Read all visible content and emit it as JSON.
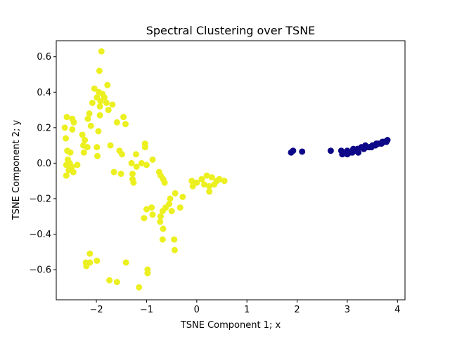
{
  "chart_data": {
    "type": "scatter",
    "title": "Spectral Clustering over TSNE",
    "xlabel": "TSNE Component 1; x",
    "ylabel": "TSNE Component 2; y",
    "xlim": [
      -2.8,
      4.15
    ],
    "ylim": [
      -0.77,
      0.69
    ],
    "xticks": [
      -2,
      -1,
      0,
      1,
      2,
      3,
      4
    ],
    "yticks": [
      -0.6,
      -0.4,
      -0.2,
      0.0,
      0.2,
      0.4,
      0.6
    ],
    "xtick_labels": [
      "−2",
      "−1",
      "0",
      "1",
      "2",
      "3",
      "4"
    ],
    "ytick_labels": [
      "−0.6",
      "−0.4",
      "−0.2",
      "0.0",
      "0.2",
      "0.4",
      "0.6"
    ],
    "grid": false,
    "series": [
      {
        "color": "#ecf020",
        "points": [
          [
            -1.9,
            0.63
          ],
          [
            -1.94,
            0.52
          ],
          [
            -1.78,
            0.44
          ],
          [
            -2.04,
            0.42
          ],
          [
            -1.95,
            0.4
          ],
          [
            -1.88,
            0.39
          ],
          [
            -1.99,
            0.37
          ],
          [
            -1.84,
            0.37
          ],
          [
            -2.08,
            0.34
          ],
          [
            -1.92,
            0.35
          ],
          [
            -1.8,
            0.34
          ],
          [
            -1.68,
            0.33
          ],
          [
            -1.93,
            0.32
          ],
          [
            -1.76,
            0.3
          ],
          [
            -2.14,
            0.28
          ],
          [
            -1.93,
            0.27
          ],
          [
            -1.46,
            0.26
          ],
          [
            -2.17,
            0.25
          ],
          [
            -2.48,
            0.25
          ],
          [
            -2.59,
            0.26
          ],
          [
            -2.45,
            0.23
          ],
          [
            -1.59,
            0.23
          ],
          [
            -2.11,
            0.21
          ],
          [
            -1.42,
            0.22
          ],
          [
            -2.63,
            0.2
          ],
          [
            -2.48,
            0.19
          ],
          [
            -1.96,
            0.18
          ],
          [
            -2.28,
            0.16
          ],
          [
            -2.61,
            0.14
          ],
          [
            -2.23,
            0.13
          ],
          [
            -2.26,
            0.1
          ],
          [
            -1.72,
            0.1
          ],
          [
            -2.18,
            0.09
          ],
          [
            -1.99,
            0.09
          ],
          [
            -1.03,
            0.11
          ],
          [
            -1.03,
            0.09
          ],
          [
            -2.58,
            0.07
          ],
          [
            -2.52,
            0.06
          ],
          [
            -1.54,
            0.07
          ],
          [
            -1.49,
            0.05
          ],
          [
            -2.25,
            0.06
          ],
          [
            -1.98,
            0.04
          ],
          [
            -1.21,
            0.05
          ],
          [
            -2.57,
            0.02
          ],
          [
            -2.53,
            0.0
          ],
          [
            -2.6,
            -0.01
          ],
          [
            -2.38,
            -0.01
          ],
          [
            -2.49,
            -0.02
          ],
          [
            -0.88,
            0.02
          ],
          [
            -1.3,
            0.0
          ],
          [
            -1.1,
            0.0
          ],
          [
            -1.0,
            -0.01
          ],
          [
            -1.2,
            -0.02
          ],
          [
            -2.55,
            -0.04
          ],
          [
            -2.46,
            -0.05
          ],
          [
            -2.6,
            -0.07
          ],
          [
            -1.65,
            -0.05
          ],
          [
            -1.51,
            -0.06
          ],
          [
            -1.28,
            -0.06
          ],
          [
            -0.75,
            -0.05
          ],
          [
            -0.72,
            -0.07
          ],
          [
            -1.28,
            -0.09
          ],
          [
            -1.26,
            -0.11
          ],
          [
            -0.67,
            -0.09
          ],
          [
            -0.64,
            -0.11
          ],
          [
            0.2,
            -0.07
          ],
          [
            0.3,
            -0.08
          ],
          [
            0.45,
            -0.09
          ],
          [
            0.55,
            -0.1
          ],
          [
            0.1,
            -0.09
          ],
          [
            -0.1,
            -0.1
          ],
          [
            0.15,
            -0.12
          ],
          [
            0.35,
            -0.12
          ],
          [
            0.0,
            -0.11
          ],
          [
            0.4,
            -0.1
          ],
          [
            0.25,
            -0.13
          ],
          [
            -0.08,
            -0.13
          ],
          [
            0.25,
            -0.16
          ],
          [
            -0.43,
            -0.17
          ],
          [
            -0.28,
            -0.19
          ],
          [
            -0.53,
            -0.2
          ],
          [
            -0.55,
            -0.23
          ],
          [
            -0.62,
            -0.25
          ],
          [
            -0.33,
            -0.25
          ],
          [
            -0.9,
            -0.25
          ],
          [
            -0.5,
            -0.27
          ],
          [
            -0.68,
            -0.27
          ],
          [
            -1.0,
            -0.26
          ],
          [
            -0.72,
            -0.3
          ],
          [
            -0.88,
            -0.29
          ],
          [
            -1.05,
            -0.31
          ],
          [
            -0.73,
            -0.33
          ],
          [
            -0.67,
            -0.37
          ],
          [
            -0.68,
            -0.43
          ],
          [
            -0.45,
            -0.43
          ],
          [
            -0.44,
            -0.49
          ],
          [
            -2.13,
            -0.51
          ],
          [
            -2.21,
            -0.56
          ],
          [
            -2.13,
            -0.56
          ],
          [
            -1.99,
            -0.55
          ],
          [
            -1.41,
            -0.56
          ],
          [
            -2.2,
            -0.58
          ],
          [
            -0.98,
            -0.6
          ],
          [
            -0.98,
            -0.62
          ],
          [
            -1.74,
            -0.66
          ],
          [
            -1.59,
            -0.67
          ],
          [
            -1.15,
            -0.7
          ]
        ]
      },
      {
        "color": "#0d0887",
        "points": [
          [
            1.88,
            0.06
          ],
          [
            1.92,
            0.07
          ],
          [
            2.1,
            0.065
          ],
          [
            2.67,
            0.07
          ],
          [
            2.88,
            0.07
          ],
          [
            2.9,
            0.05
          ],
          [
            2.95,
            0.06
          ],
          [
            3.0,
            0.05
          ],
          [
            3.05,
            0.06
          ],
          [
            3.1,
            0.06
          ],
          [
            3.15,
            0.07
          ],
          [
            3.2,
            0.08
          ],
          [
            3.22,
            0.06
          ],
          [
            3.28,
            0.09
          ],
          [
            3.33,
            0.08
          ],
          [
            3.38,
            0.09
          ],
          [
            3.44,
            0.09
          ],
          [
            3.5,
            0.1
          ],
          [
            3.56,
            0.1
          ],
          [
            3.62,
            0.11
          ],
          [
            3.68,
            0.11
          ],
          [
            3.74,
            0.12
          ],
          [
            3.8,
            0.13
          ],
          [
            3.0,
            0.07
          ],
          [
            3.12,
            0.08
          ],
          [
            3.36,
            0.1
          ],
          [
            3.48,
            0.09
          ],
          [
            3.58,
            0.11
          ],
          [
            3.7,
            0.12
          ],
          [
            3.78,
            0.12
          ]
        ]
      }
    ]
  }
}
